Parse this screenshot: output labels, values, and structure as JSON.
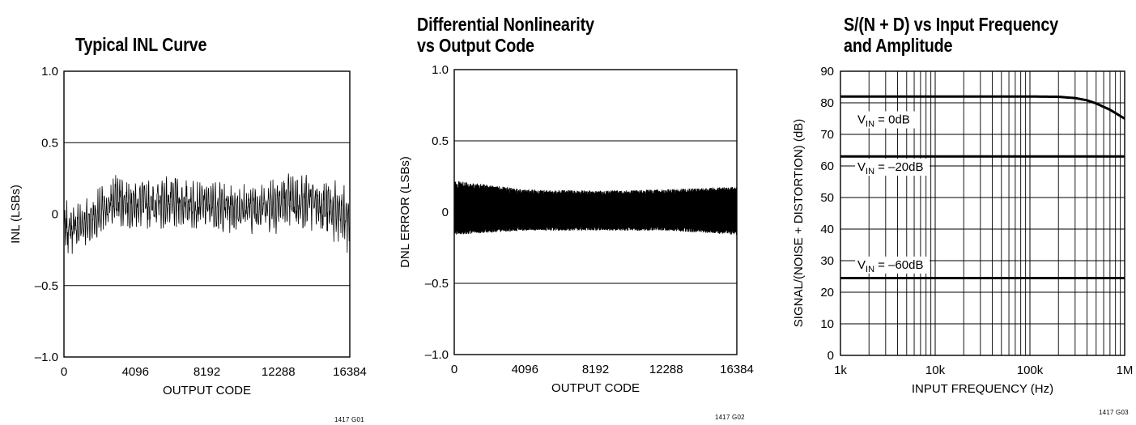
{
  "chart_data": [
    {
      "type": "line",
      "title": "Typical INL Curve",
      "xlabel": "OUTPUT CODE",
      "ylabel": "INL (LSBs)",
      "xlim": [
        0,
        16384
      ],
      "ylim": [
        -1.0,
        1.0
      ],
      "x_ticks": [
        "0",
        "4096",
        "8192",
        "12288",
        "16384"
      ],
      "y_ticks": [
        "1.0",
        "0.5",
        "0",
        "–0.5",
        "–1.0"
      ],
      "grid": "horizontal at ±0.5",
      "envelope": {
        "x": [
          0,
          1000,
          2048,
          3000,
          4096,
          6144,
          8192,
          10240,
          12288,
          14336,
          16384
        ],
        "upper": [
          0.1,
          0.1,
          0.2,
          0.3,
          0.25,
          0.28,
          0.25,
          0.22,
          0.3,
          0.3,
          0.22
        ],
        "lower": [
          -0.33,
          -0.25,
          -0.2,
          -0.1,
          -0.12,
          -0.12,
          -0.12,
          -0.15,
          -0.15,
          -0.12,
          -0.3
        ]
      },
      "figure_id": "1417 G01"
    },
    {
      "type": "line",
      "title": "Differential Nonlinearity vs Output Code",
      "title_lines": [
        "Differential Nonlinearity",
        "vs Output Code"
      ],
      "xlabel": "OUTPUT CODE",
      "ylabel": "DNL ERROR (LSBs)",
      "xlim": [
        0,
        16384
      ],
      "ylim": [
        -1.0,
        1.0
      ],
      "x_ticks": [
        "0",
        "4096",
        "8192",
        "12288",
        "16384"
      ],
      "y_ticks": [
        "1.0",
        "0.5",
        "0",
        "–0.5",
        "–1.0"
      ],
      "grid": "horizontal at ±0.5",
      "envelope": {
        "x": [
          0,
          4096,
          8192,
          12288,
          16384
        ],
        "upper": [
          0.22,
          0.16,
          0.15,
          0.16,
          0.18
        ],
        "lower": [
          -0.16,
          -0.13,
          -0.13,
          -0.13,
          -0.16
        ]
      },
      "figure_id": "1417 G02"
    },
    {
      "type": "line",
      "title": "S/(N + D) vs Input Frequency and Amplitude",
      "title_lines": [
        "S/(N + D) vs Input Frequency",
        "and Amplitude"
      ],
      "xlabel": "INPUT FREQUENCY (Hz)",
      "ylabel": "SIGNAL/(NOISE + DISTORTION) (dB)",
      "xscale": "log",
      "xlim": [
        1000,
        1000000
      ],
      "ylim": [
        0,
        90
      ],
      "x_ticks": [
        "1k",
        "10k",
        "100k",
        "1M"
      ],
      "y_ticks": [
        "90",
        "80",
        "70",
        "60",
        "50",
        "40",
        "30",
        "20",
        "10",
        "0"
      ],
      "grid": "full log grid",
      "series": [
        {
          "name": "V_IN = 0dB",
          "label_main": "V",
          "label_sub": "IN",
          "label_rest": " = 0dB",
          "x": [
            1000,
            10000,
            100000,
            200000,
            300000,
            400000,
            500000,
            700000,
            1000000
          ],
          "y": [
            82,
            82,
            82,
            81.9,
            81.5,
            80.8,
            79.8,
            77.8,
            75
          ]
        },
        {
          "name": "V_IN = –20dB",
          "label_main": "V",
          "label_sub": "IN",
          "label_rest": " = –20dB",
          "x": [
            1000,
            1000000
          ],
          "y": [
            63,
            63
          ]
        },
        {
          "name": "V_IN = –60dB",
          "label_main": "V",
          "label_sub": "IN",
          "label_rest": " = –60dB",
          "x": [
            1000,
            1000000
          ],
          "y": [
            24.5,
            24.5
          ]
        }
      ],
      "figure_id": "1417 G03"
    }
  ]
}
